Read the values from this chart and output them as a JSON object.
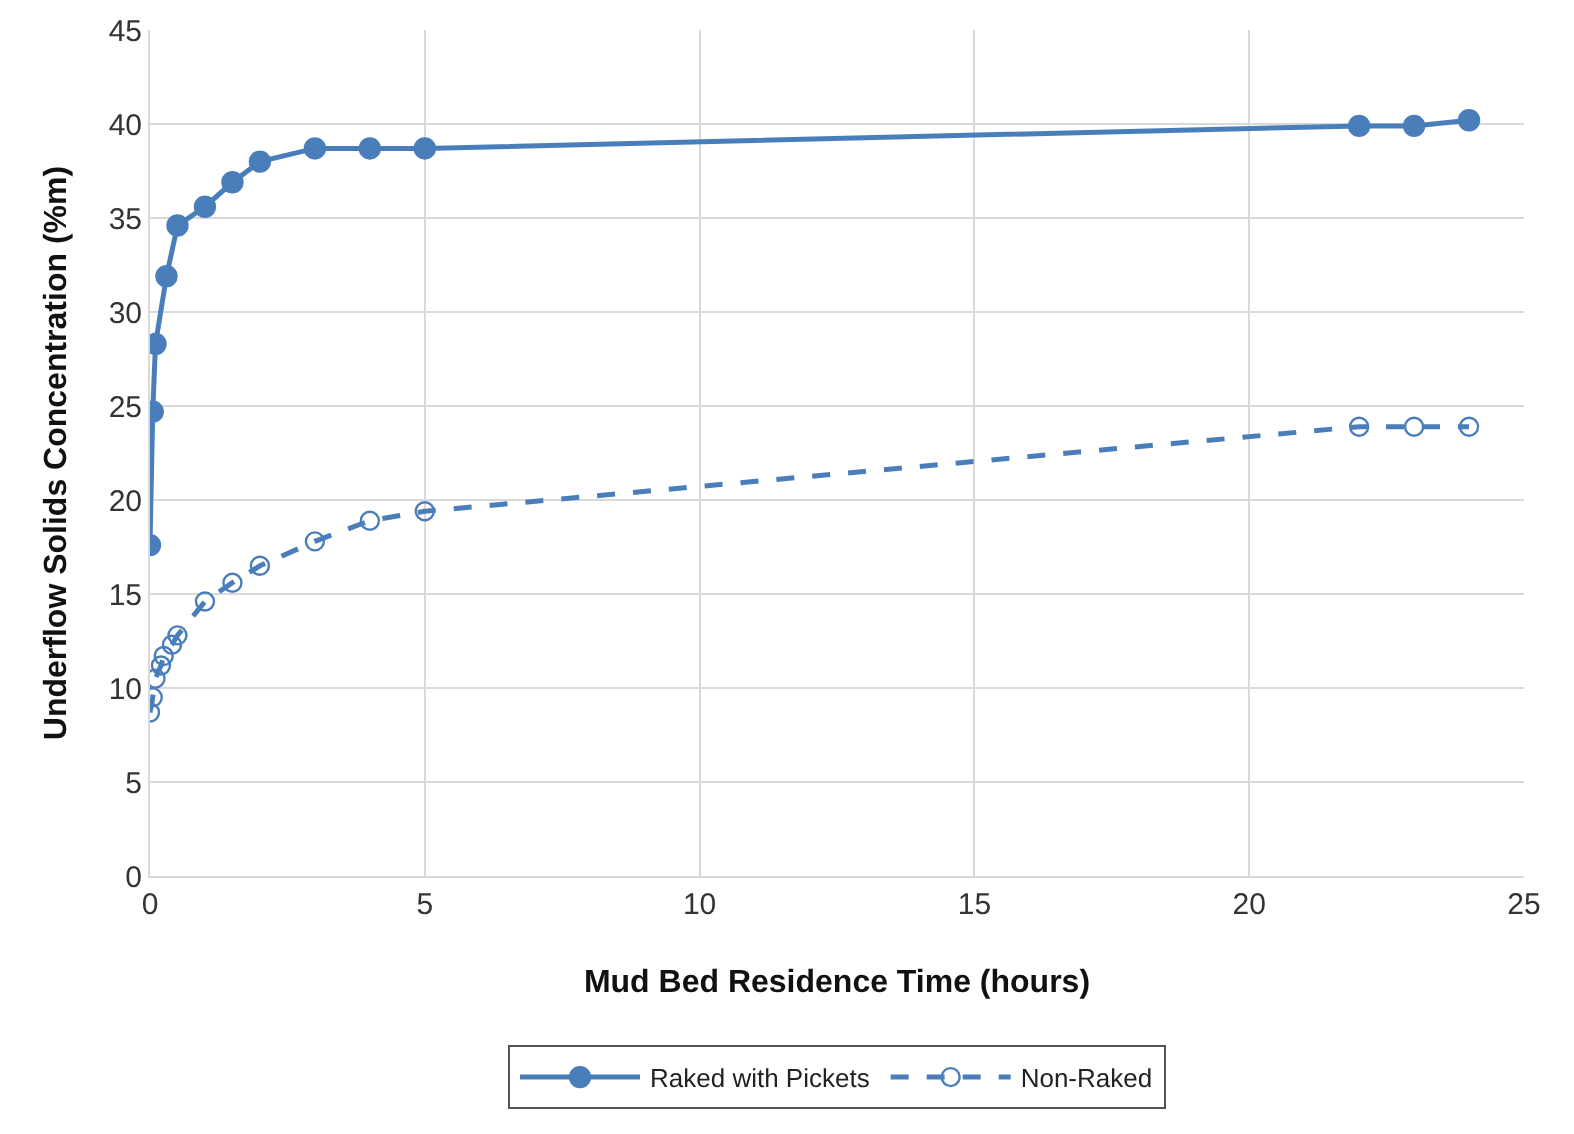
{
  "chart_data": {
    "type": "line",
    "xlabel": "Mud Bed Residence Time (hours)",
    "ylabel": "Underflow Solids Concentration (%m)",
    "xlim": [
      0,
      25
    ],
    "xticks": [
      0,
      5,
      10,
      15,
      20,
      25
    ],
    "ylim": [
      0,
      45
    ],
    "yticks": [
      0,
      5,
      10,
      15,
      20,
      25,
      30,
      35,
      40,
      45
    ],
    "grid": true,
    "legend": "bottom",
    "marker": "circle",
    "series": [
      {
        "name": "Raked with Pickets",
        "color": "#4a7ebb",
        "line_style": "solid",
        "x": [
          0,
          0.05,
          0.1,
          0.3,
          0.5,
          1,
          1.5,
          2,
          3,
          4,
          5,
          22,
          23,
          24
        ],
        "values": [
          17.6,
          24.7,
          28.3,
          31.9,
          34.6,
          35.6,
          36.9,
          38,
          38.7,
          38.7,
          38.7,
          39.9,
          39.9,
          40.2
        ]
      },
      {
        "name": "Non-Raked",
        "color": "#4a7ebb",
        "line_style": "dashed",
        "x": [
          0,
          0.05,
          0.1,
          0.2,
          0.25,
          0.4,
          0.5,
          1,
          1.5,
          2,
          3,
          4,
          5,
          22,
          23,
          24
        ],
        "values": [
          8.7,
          9.5,
          10.5,
          11.2,
          11.7,
          12.3,
          12.8,
          14.6,
          15.6,
          16.5,
          17.8,
          18.9,
          19.4,
          23.9,
          23.9,
          23.9
        ]
      }
    ]
  }
}
